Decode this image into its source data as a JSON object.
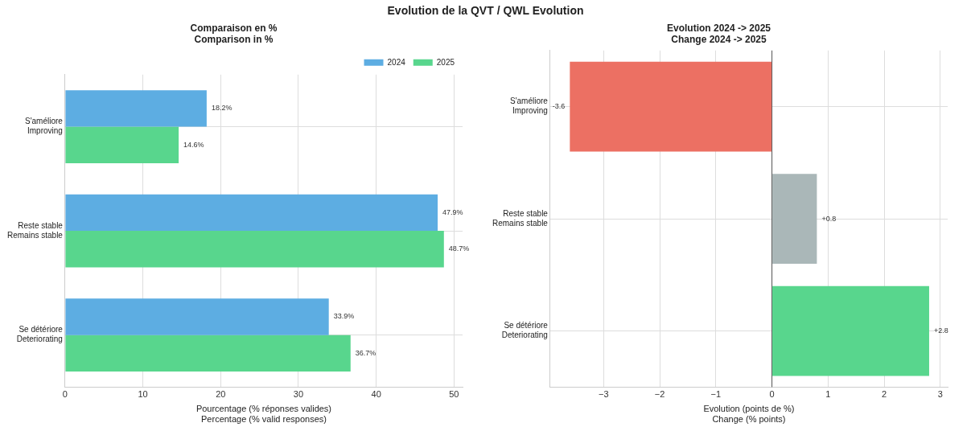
{
  "chart_data": [
    {
      "type": "bar",
      "orientation": "horizontal",
      "title": "Comparaison en %\nComparison in %",
      "xlabel": "Pourcentage (% réponses valides)\nPercentage (% valid responses)",
      "annotations": [
        "Evolution de la QVT / QWL Evolution"
      ],
      "categories": [
        "S'améliore\nImproving",
        "Reste stable\nRemains stable",
        "Se détériore\nDeteriorating"
      ],
      "series": [
        {
          "name": "2024",
          "color": "#5dade2",
          "values": [
            18.2,
            47.9,
            33.9
          ],
          "value_labels": [
            "18.2%",
            "47.9%",
            "33.9%"
          ]
        },
        {
          "name": "2025",
          "color": "#58d68d",
          "values": [
            14.6,
            48.7,
            36.7
          ],
          "value_labels": [
            "14.6%",
            "48.7%",
            "36.7%"
          ]
        }
      ],
      "xlim": [
        0,
        51.1
      ],
      "xticks": [
        0,
        10,
        20,
        30,
        40,
        50
      ],
      "grid": true,
      "legend": "top right"
    },
    {
      "type": "bar",
      "orientation": "horizontal",
      "title": "Evolution 2024 -> 2025\nChange 2024 -> 2025",
      "xlabel": "Evolution (points de %)\nChange (% points)",
      "categories": [
        "S'améliore\nImproving",
        "Reste stable\nRemains stable",
        "Se détériore\nDeteriorating"
      ],
      "values": [
        -3.6,
        0.8,
        2.8
      ],
      "colors": [
        "#ec7063",
        "#aab7b8",
        "#58d68d"
      ],
      "value_labels": [
        "-3.6",
        "+0.8",
        "+2.8"
      ],
      "xlim": [
        -3.95,
        3.13
      ],
      "xticks": [
        {
          "value": -3,
          "label": "−3"
        },
        {
          "value": -2,
          "label": "−2"
        },
        {
          "value": -1,
          "label": "−1"
        },
        0,
        1,
        2,
        3
      ],
      "grid": true,
      "ref_lines": [
        {
          "axis": "x",
          "value": 0,
          "color": "#555555"
        }
      ]
    }
  ]
}
